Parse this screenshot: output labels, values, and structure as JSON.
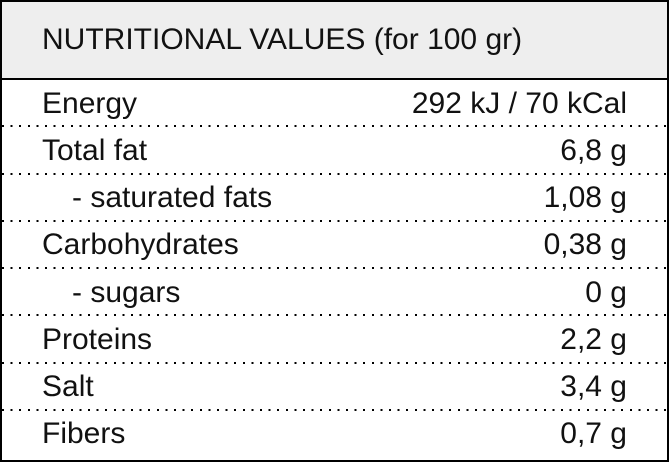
{
  "header": {
    "title": "NUTRITIONAL VALUES (for 100 gr)"
  },
  "table": {
    "rows": [
      [
        "Energy",
        "292 kJ / 70 kCal"
      ],
      [
        "Total fat",
        "6,8 g"
      ],
      [
        "- saturated fats",
        "1,08 g"
      ],
      [
        "Carbohydrates",
        "0,38 g"
      ],
      [
        "- sugars",
        "0 g"
      ],
      [
        "Proteins",
        "2,2 g"
      ],
      [
        "Salt",
        "3,4 g"
      ],
      [
        "Fibers",
        "0,7 g"
      ]
    ]
  }
}
